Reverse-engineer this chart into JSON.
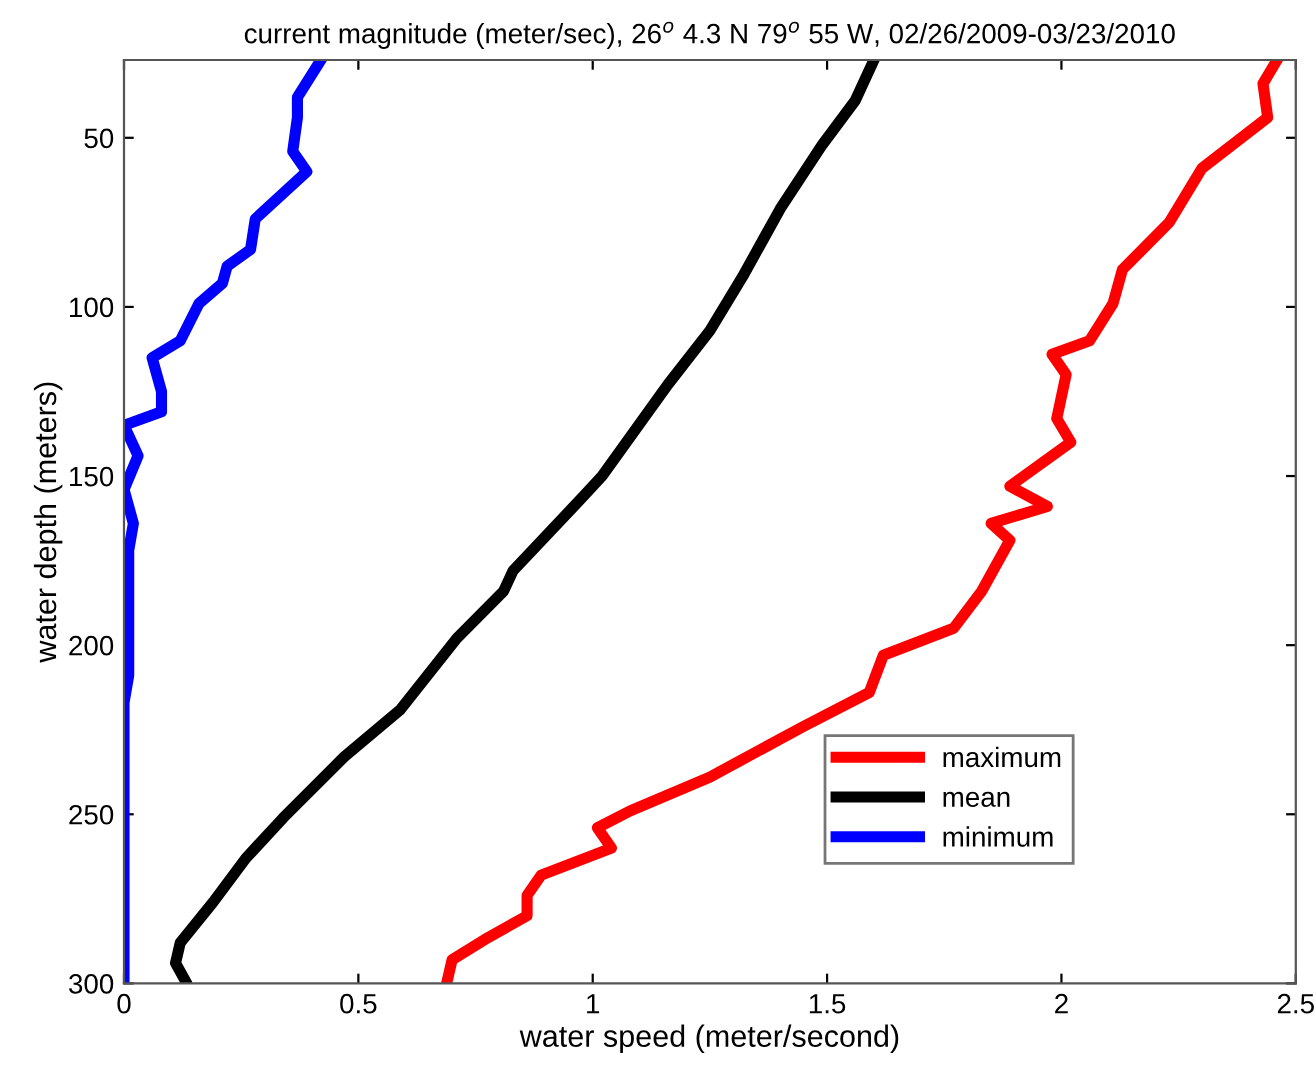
{
  "chart_data": {
    "type": "line",
    "title": "current magnitude (meter/sec), 26$^{o}$ 4.3 N 79$^{o}$ 55 W, 02/26/2009-03/23/2010",
    "xlabel": "water speed (meter/second)",
    "ylabel": "water depth (meters)",
    "xlim": [
      0,
      2.5
    ],
    "ylim": [
      300,
      27
    ],
    "xticks": [
      0,
      0.5,
      1,
      1.5,
      2,
      2.5
    ],
    "yticks": [
      50,
      100,
      150,
      200,
      250,
      300
    ],
    "legend": "bottom right",
    "marker": "none",
    "line_style": "solid",
    "grid": false,
    "series": [
      {
        "name": "maximum",
        "color": "#ff0000",
        "x": [
          2.46,
          2.43,
          2.44,
          2.3,
          2.23,
          2.13,
          2.11,
          2.06,
          1.98,
          2.01,
          1.99,
          2.02,
          1.89,
          1.97,
          1.85,
          1.89,
          1.83,
          1.77,
          1.62,
          1.59,
          1.45,
          1.25,
          1.08,
          1.01,
          1.04,
          0.89,
          0.86,
          0.86,
          0.77,
          0.7,
          0.69
        ],
        "values": [
          27,
          34,
          44,
          59,
          75,
          89,
          99,
          110,
          114,
          120,
          133,
          140,
          153,
          159,
          164,
          169,
          184,
          195,
          203,
          214,
          224,
          239,
          249,
          254,
          260,
          268,
          274,
          280,
          287,
          293,
          299
        ]
      },
      {
        "name": "mean",
        "color": "#000000",
        "x": [
          1.6,
          1.56,
          1.49,
          1.4,
          1.32,
          1.25,
          1.16,
          1.02,
          0.98,
          0.83,
          0.81,
          0.71,
          0.59,
          0.47,
          0.34,
          0.26,
          0.19,
          0.12,
          0.11,
          0.13
        ],
        "values": [
          27,
          39,
          52,
          71,
          91,
          107,
          123,
          150,
          156,
          178,
          184,
          198,
          219,
          233,
          251,
          263,
          276,
          288,
          294,
          299
        ]
      },
      {
        "name": "minimum",
        "color": "#0000ff",
        "x": [
          0.42,
          0.37,
          0.37,
          0.36,
          0.39,
          0.28,
          0.27,
          0.22,
          0.21,
          0.16,
          0.12,
          0.06,
          0.08,
          0.08,
          0.0,
          0.03,
          0.0,
          0.02,
          0.01,
          0.01,
          0.0,
          0.0
        ],
        "values": [
          27,
          38,
          44,
          54,
          60,
          74,
          83,
          88,
          93,
          99,
          110,
          115,
          125,
          131,
          135,
          144,
          154,
          164,
          172,
          209,
          217,
          299
        ]
      }
    ]
  }
}
